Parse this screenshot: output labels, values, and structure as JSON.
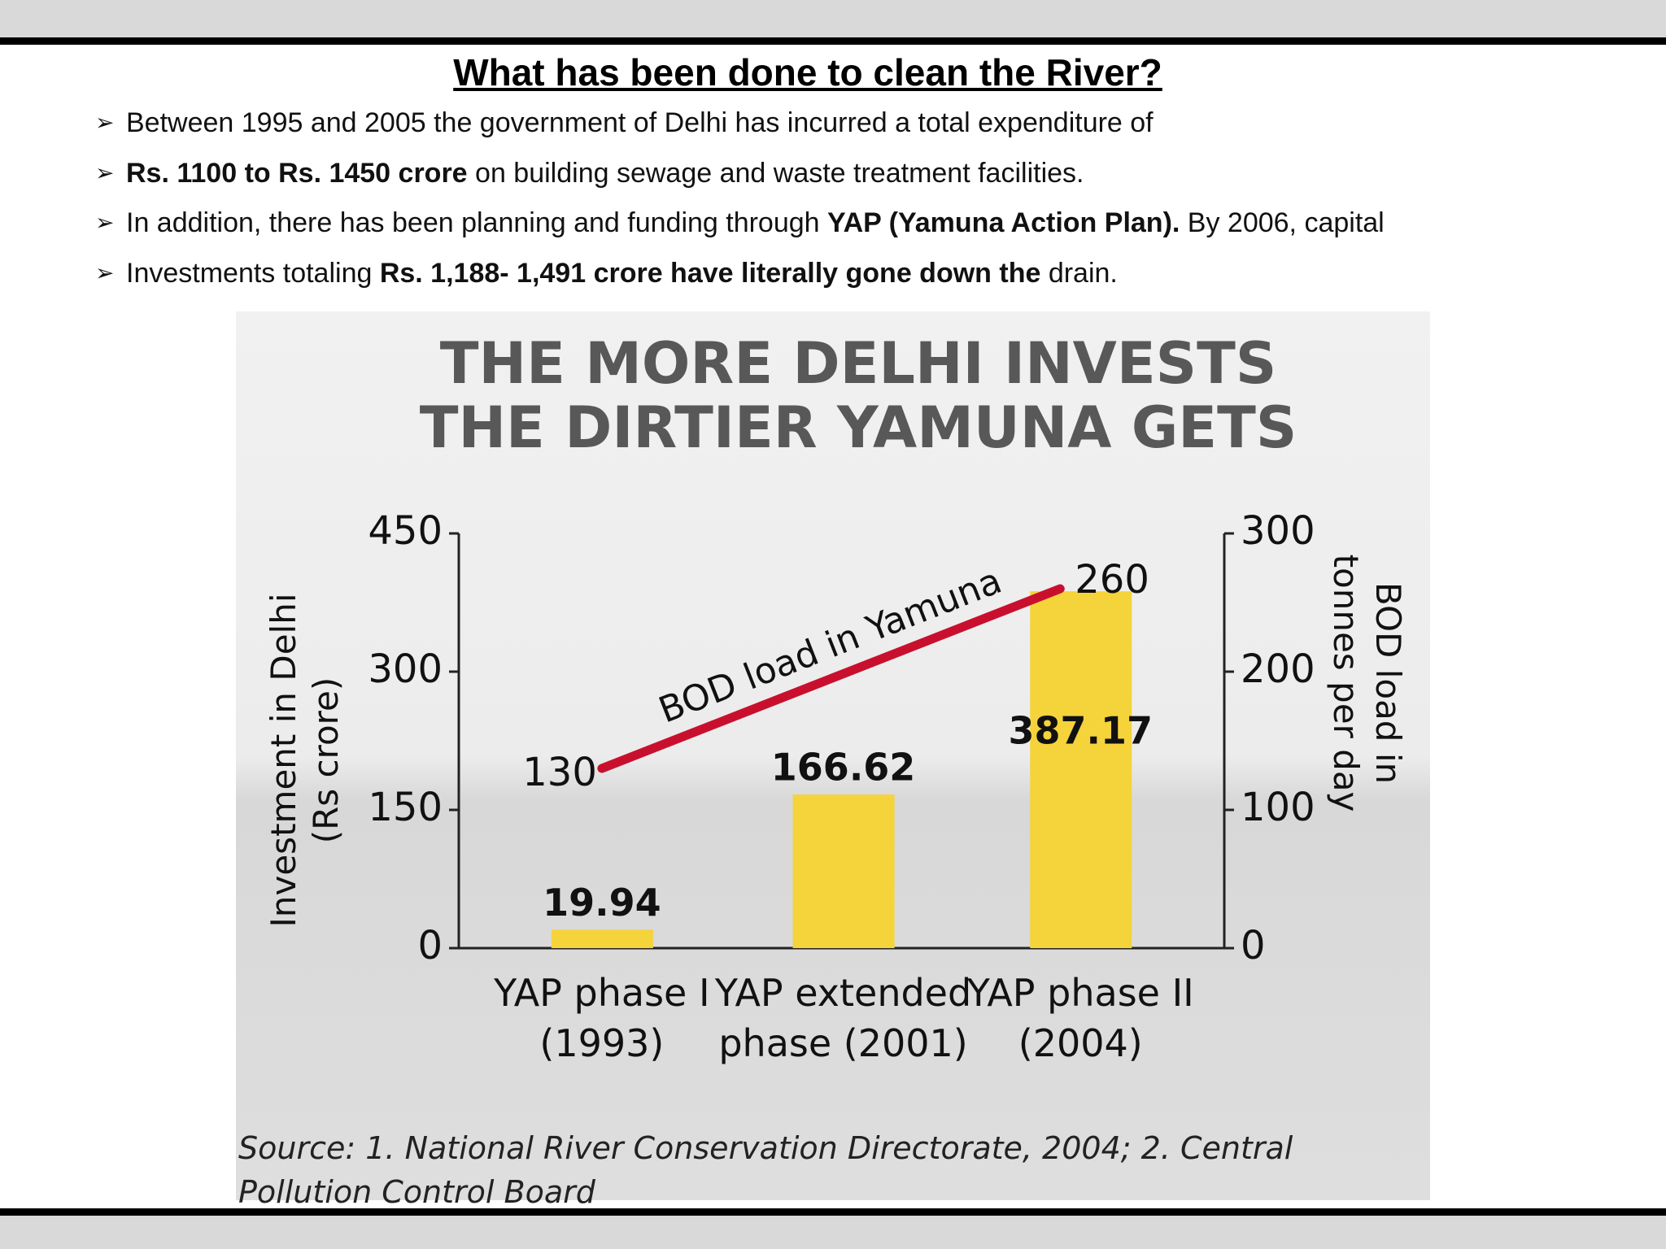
{
  "header": {
    "title": "What has been done to clean the River?"
  },
  "bullets": [
    [
      {
        "text": "Between 1995 and 2005 the government of Delhi has incurred a total expenditure of",
        "bold": false
      }
    ],
    [
      {
        "text": "Rs. 1100 to Rs. 1450 crore",
        "bold": true
      },
      {
        "text": " on building sewage and waste treatment facilities.",
        "bold": false
      }
    ],
    [
      {
        "text": "In addition, there has been planning and funding through ",
        "bold": false
      },
      {
        "text": "YAP (Yamuna Action Plan).",
        "bold": true
      },
      {
        "text": " By 2006, capital",
        "bold": false
      }
    ],
    [
      {
        "text": "Investments totaling ",
        "bold": false
      },
      {
        "text": "Rs. 1,188- 1,491 crore have literally gone down the",
        "bold": true
      },
      {
        "text": " drain.",
        "bold": false
      }
    ]
  ],
  "chart_data": {
    "type": "bar",
    "title": [
      "THE MORE DELHI INVESTS",
      "THE DIRTIER YAMUNA GETS"
    ],
    "categories": [
      "YAP phase I (1993)",
      "YAP extended phase (2001)",
      "YAP phase II (2004)"
    ],
    "series": [
      {
        "type": "bar",
        "color": "#f5d33a",
        "values": [
          19.94,
          166.62,
          387.17
        ]
      },
      {
        "type": "line",
        "name": "BOD load in Yamuna",
        "color": "#c8102e",
        "axis": "y2",
        "values": [
          130,
          null,
          260
        ]
      }
    ],
    "y_label": "Investment in Delhi (Rs crore)",
    "y2_label": "BOD load in tonnes per day",
    "ylim": [
      0,
      450
    ],
    "yticks": [
      0,
      150,
      300,
      450
    ],
    "y2lim": [
      0,
      300
    ],
    "y2ticks": [
      0,
      100,
      200,
      300
    ],
    "source": "Source: 1. National River Conservation Directorate, 2004; 2. Central Pollution Control Board"
  }
}
